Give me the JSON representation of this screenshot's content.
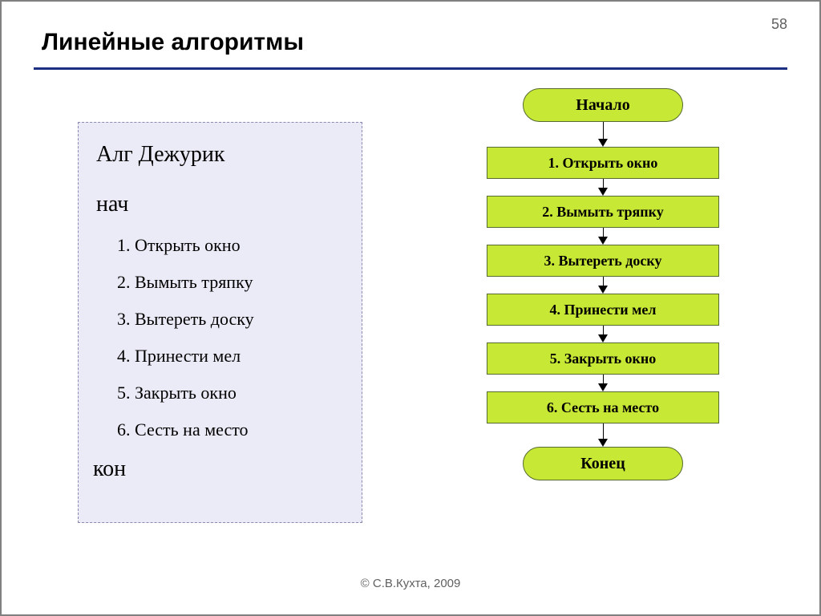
{
  "page_number": "58",
  "title": "Линейные алгоритмы",
  "footer": "© С.В.Кухта, 2009",
  "algo_box": {
    "background_color": "#ebebf7",
    "border_color": "#8a8ab0",
    "title": "Алг Дежурик",
    "begin": "нач",
    "end": "кон",
    "title_fontsize": 28,
    "keyword_fontsize": 28,
    "step_fontsize": 22,
    "steps": [
      "1. Открыть окно",
      "2. Вымыть тряпку",
      "3. Вытереть доску",
      "4. Принести мел",
      "5. Закрыть окно",
      "6. Сесть на место"
    ]
  },
  "flowchart": {
    "type": "flowchart",
    "node_fill": "#c8e836",
    "node_border": "#556b2f",
    "terminator_radius": 22,
    "arrow_color": "#000000",
    "start": "Начало",
    "end": "Конец",
    "label_fontsize": 18,
    "terminator_fontsize": 20,
    "nodes": [
      {
        "type": "terminator",
        "label": "Начало"
      },
      {
        "type": "process",
        "label": "1. Открыть окно"
      },
      {
        "type": "process",
        "label": "2. Вымыть тряпку"
      },
      {
        "type": "process",
        "label": "3. Вытереть доску"
      },
      {
        "type": "process",
        "label": "4. Принести мел"
      },
      {
        "type": "process",
        "label": "5. Закрыть окно"
      },
      {
        "type": "process",
        "label": "6. Сесть на место"
      },
      {
        "type": "terminator",
        "label": "Конец"
      }
    ],
    "arrow_gap_first": 22,
    "arrow_gap_mid": 12,
    "arrow_gap_last": 20
  },
  "colors": {
    "rule": "#1c2f82",
    "page_border": "#808080",
    "text_muted": "#606060"
  }
}
